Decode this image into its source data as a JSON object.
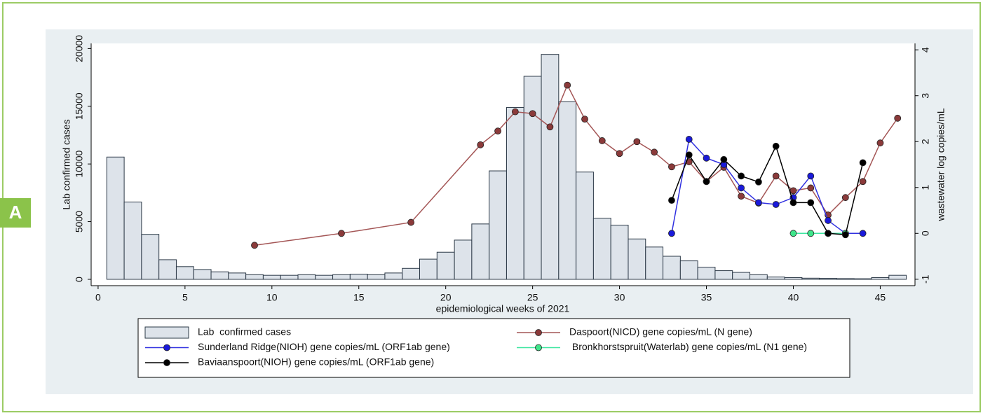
{
  "panel_label": "A",
  "chart_data": {
    "type": "combo",
    "x_label": "epidemiological weeks of 2021",
    "y_label": "Lab  confirmed cases",
    "y2_label": "wastewater log copies/mL",
    "xlim": [
      -0.4,
      47
    ],
    "xticks": [
      0,
      5,
      10,
      15,
      20,
      25,
      30,
      35,
      40,
      45
    ],
    "ylim": [
      -550,
      20450
    ],
    "yticks": [
      0,
      5000,
      10000,
      15000,
      20000
    ],
    "y2lim": [
      -1.14,
      4.14
    ],
    "y2ticks": [
      -1,
      0,
      1,
      2,
      3,
      4
    ],
    "series": [
      {
        "name": "Lab  confirmed cases",
        "type": "bar",
        "color": "#dde3ea",
        "edge": "#2b3846",
        "x": [
          1,
          2,
          3,
          4,
          5,
          6,
          7,
          8,
          9,
          10,
          11,
          12,
          13,
          14,
          15,
          16,
          17,
          18,
          19,
          20,
          21,
          22,
          23,
          24,
          25,
          26,
          27,
          28,
          29,
          30,
          31,
          32,
          33,
          34,
          35,
          36,
          37,
          38,
          39,
          40,
          41,
          42,
          43,
          44,
          45,
          46
        ],
        "values": [
          10600,
          6700,
          3900,
          1700,
          1100,
          850,
          650,
          550,
          400,
          350,
          350,
          400,
          350,
          400,
          450,
          400,
          550,
          950,
          1750,
          2350,
          3400,
          4800,
          9400,
          14900,
          17600,
          19500,
          15400,
          9300,
          5300,
          4700,
          3500,
          2800,
          2000,
          1600,
          1050,
          750,
          600,
          400,
          200,
          150,
          100,
          80,
          60,
          50,
          150,
          350
        ]
      },
      {
        "name": "Daspoort(NICD) gene copies/mL (N gene)",
        "type": "line",
        "axis": "y2",
        "color": "#a45656",
        "marker": "#8b3a3a",
        "x": [
          9,
          14,
          18,
          22,
          23,
          24,
          25,
          26,
          27,
          28,
          29,
          30,
          31,
          32,
          33,
          34,
          35,
          36,
          37,
          38,
          39,
          40,
          41,
          42,
          43,
          44,
          45,
          46
        ],
        "values": [
          -0.26,
          0,
          0.24,
          1.93,
          2.23,
          2.65,
          2.61,
          2.32,
          3.23,
          2.49,
          2.02,
          1.74,
          2,
          1.77,
          1.45,
          1.56,
          1.13,
          1.44,
          0.81,
          0.66,
          1.25,
          0.93,
          0.99,
          0.4,
          0.78,
          1.13,
          1.97,
          2.51
        ]
      },
      {
        "name": "Sunderland Ridge(NIOH) gene copies/mL (ORF1ab gene)",
        "type": "line",
        "axis": "y2",
        "color": "#3030e0",
        "marker": "#1a1adb",
        "x": [
          33,
          34,
          35,
          36,
          37,
          38,
          39,
          40,
          41,
          42,
          43,
          44
        ],
        "values": [
          0,
          2.05,
          1.64,
          1.5,
          0.99,
          0.67,
          0.63,
          0.78,
          1.25,
          0.28,
          0,
          0
        ]
      },
      {
        "name": " Bronkhorstspruit(Waterlab) gene copies/mL (N1 gene)",
        "type": "line",
        "axis": "y2",
        "color": "#3ce6a0",
        "marker": "#3fe58a",
        "x": [
          40,
          41,
          42,
          43
        ],
        "values": [
          0,
          0,
          0,
          0
        ]
      },
      {
        "name": "Baviaanspoort(NIOH) gene copies/mL (ORF1ab gene)",
        "type": "line",
        "axis": "y2",
        "color": "#000000",
        "marker": "#000000",
        "x": [
          33,
          34,
          35,
          36,
          37,
          38,
          39,
          40,
          41,
          42,
          43,
          44
        ],
        "values": [
          0.72,
          1.71,
          1.13,
          1.61,
          1.25,
          1.12,
          1.9,
          0.67,
          0.67,
          0,
          -0.03,
          1.54
        ]
      }
    ]
  }
}
